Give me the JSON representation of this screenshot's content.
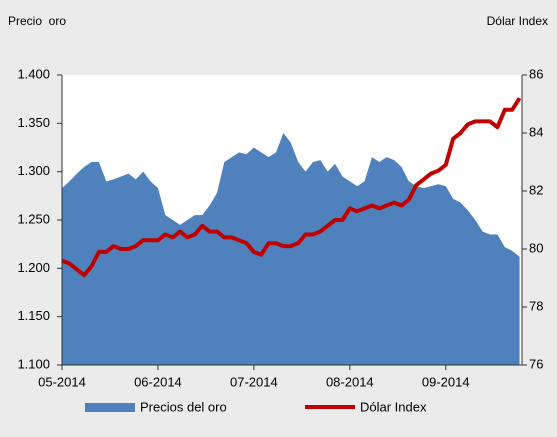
{
  "chart_data": {
    "type": "area_line",
    "y_label": "Precio  oro",
    "y2_label": "Dólar Index",
    "categories": [
      "05-2014",
      null,
      null,
      null,
      null,
      null,
      null,
      null,
      null,
      null,
      null,
      null,
      null,
      "06-2014",
      null,
      null,
      null,
      null,
      null,
      null,
      null,
      null,
      null,
      null,
      null,
      null,
      "07-2014",
      null,
      null,
      null,
      null,
      null,
      null,
      null,
      null,
      null,
      null,
      null,
      null,
      "08-2014",
      null,
      null,
      null,
      null,
      null,
      null,
      null,
      null,
      null,
      null,
      null,
      null,
      "09-2014",
      null,
      null,
      null,
      null,
      null,
      null,
      null,
      null,
      null,
      null
    ],
    "series": [
      {
        "name": "Precios del oro",
        "type": "area",
        "color": "#4f81bd",
        "axis": "y",
        "values": [
          1283,
          1290,
          1298,
          1305,
          1310,
          1310,
          1290,
          1292,
          1295,
          1298,
          1292,
          1300,
          1290,
          1283,
          1255,
          1250,
          1245,
          1250,
          1255,
          1255,
          1265,
          1278,
          1310,
          1315,
          1320,
          1318,
          1325,
          1320,
          1315,
          1320,
          1340,
          1330,
          1310,
          1300,
          1310,
          1312,
          1300,
          1308,
          1295,
          1290,
          1285,
          1290,
          1315,
          1310,
          1315,
          1312,
          1305,
          1290,
          1285,
          1283,
          1285,
          1287,
          1285,
          1272,
          1268,
          1260,
          1250,
          1238,
          1235,
          1235,
          1222,
          1218,
          1212
        ]
      },
      {
        "name": "Dólar Index",
        "type": "line",
        "color": "#c00000",
        "axis": "y2",
        "values": [
          79.6,
          79.5,
          79.3,
          79.1,
          79.4,
          79.9,
          79.9,
          80.1,
          80.0,
          80.0,
          80.1,
          80.3,
          80.3,
          80.3,
          80.5,
          80.4,
          80.6,
          80.4,
          80.5,
          80.8,
          80.6,
          80.6,
          80.4,
          80.4,
          80.3,
          80.2,
          79.9,
          79.8,
          80.2,
          80.2,
          80.1,
          80.1,
          80.2,
          80.5,
          80.5,
          80.6,
          80.8,
          81.0,
          81.0,
          81.4,
          81.3,
          81.4,
          81.5,
          81.4,
          81.5,
          81.6,
          81.5,
          81.7,
          82.2,
          82.4,
          82.6,
          82.7,
          82.9,
          83.8,
          84.0,
          84.3,
          84.4,
          84.4,
          84.4,
          84.2,
          84.8,
          84.8,
          85.2
        ]
      }
    ],
    "ylim": [
      1100,
      1400
    ],
    "yticks": [
      {
        "value": 1100,
        "label": "1.100"
      },
      {
        "value": 1150,
        "label": "1.150"
      },
      {
        "value": 1200,
        "label": "1.200"
      },
      {
        "value": 1250,
        "label": "1.250"
      },
      {
        "value": 1300,
        "label": "1.300"
      },
      {
        "value": 1350,
        "label": "1.350"
      },
      {
        "value": 1400,
        "label": "1.400"
      }
    ],
    "y2lim": [
      76,
      86
    ],
    "y2ticks": [
      76,
      78,
      80,
      82,
      84,
      86
    ],
    "legend": "bottom"
  }
}
